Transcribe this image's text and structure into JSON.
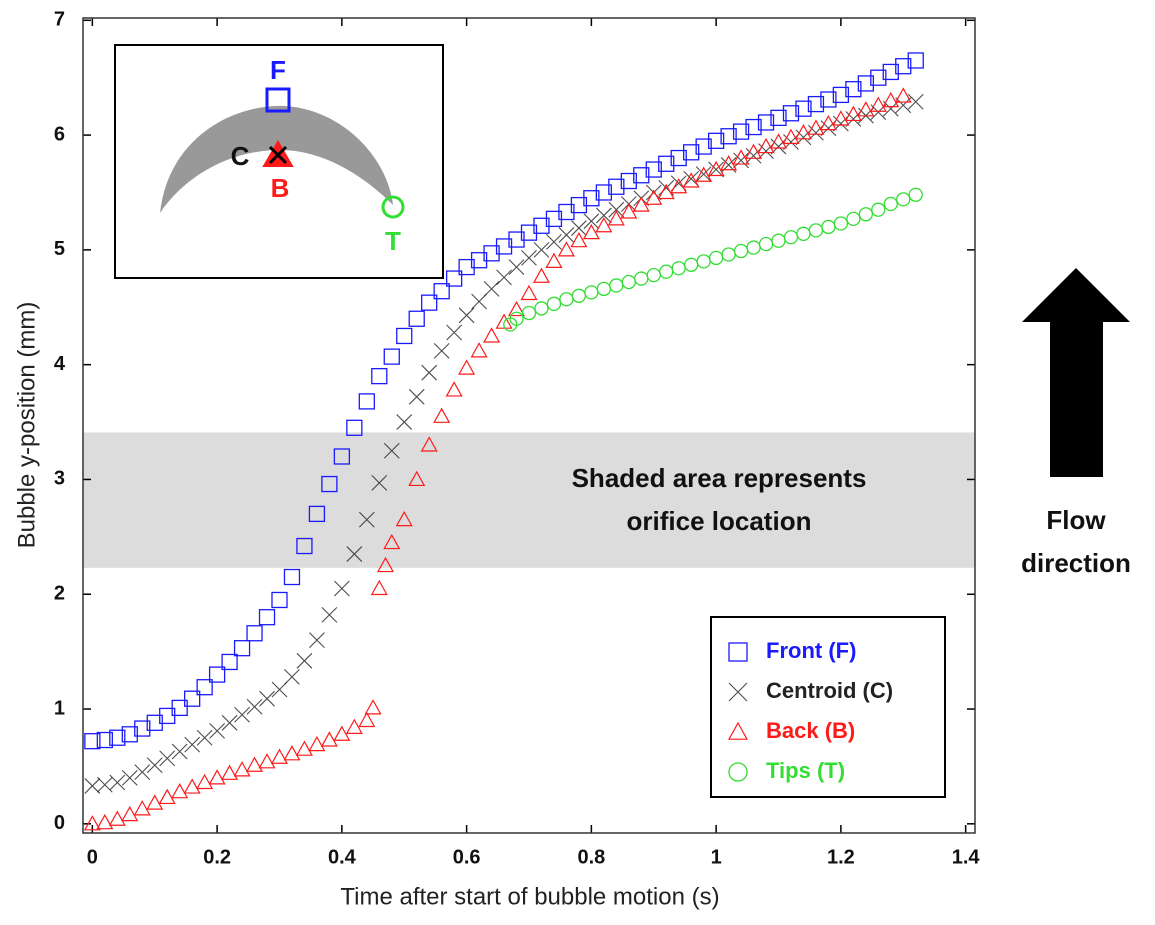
{
  "chart_data": {
    "type": "scatter",
    "x_label": "Time after start of bubble motion (s)",
    "y_label": "Bubble y-position (mm)",
    "xlim": [
      -0.015,
      1.415
    ],
    "ylim": [
      -0.08,
      7.02
    ],
    "xticks": [
      0,
      0.2,
      0.4,
      0.6,
      0.8,
      1,
      1.2,
      1.4
    ],
    "yticks": [
      0,
      1,
      2,
      3,
      4,
      5,
      6,
      7
    ],
    "shaded_band": [
      2.23,
      3.41
    ],
    "annotation": [
      "Shaded area represents",
      "orifice location"
    ],
    "side_note": [
      "Flow",
      "direction"
    ],
    "legend_position": "lower right",
    "inset_labels": {
      "front": "F",
      "centroid": "C",
      "back": "B",
      "tips": "T"
    },
    "series": [
      {
        "name": "Front (F)",
        "marker": "square",
        "color": "#1a1aff",
        "x": [
          0,
          0.02,
          0.04,
          0.06,
          0.08,
          0.1,
          0.12,
          0.14,
          0.16,
          0.18,
          0.2,
          0.22,
          0.24,
          0.26,
          0.28,
          0.3,
          0.32,
          0.34,
          0.36,
          0.38,
          0.4,
          0.42,
          0.44,
          0.46,
          0.48,
          0.5,
          0.52,
          0.54,
          0.56,
          0.58,
          0.6,
          0.62,
          0.64,
          0.66,
          0.68,
          0.7,
          0.72,
          0.74,
          0.76,
          0.78,
          0.8,
          0.82,
          0.84,
          0.86,
          0.88,
          0.9,
          0.92,
          0.94,
          0.96,
          0.98,
          1,
          1.02,
          1.04,
          1.06,
          1.08,
          1.1,
          1.12,
          1.14,
          1.16,
          1.18,
          1.2,
          1.22,
          1.24,
          1.26,
          1.28,
          1.3,
          1.32
        ],
        "values": [
          0.72,
          0.73,
          0.75,
          0.78,
          0.83,
          0.88,
          0.94,
          1.01,
          1.09,
          1.19,
          1.3,
          1.41,
          1.53,
          1.66,
          1.8,
          1.95,
          2.15,
          2.42,
          2.7,
          2.96,
          3.2,
          3.45,
          3.68,
          3.9,
          4.07,
          4.25,
          4.4,
          4.54,
          4.64,
          4.75,
          4.85,
          4.91,
          4.97,
          5.03,
          5.09,
          5.15,
          5.21,
          5.27,
          5.33,
          5.39,
          5.45,
          5.5,
          5.55,
          5.6,
          5.65,
          5.7,
          5.75,
          5.8,
          5.85,
          5.9,
          5.95,
          5.99,
          6.03,
          6.07,
          6.11,
          6.15,
          6.19,
          6.23,
          6.27,
          6.31,
          6.35,
          6.4,
          6.45,
          6.5,
          6.55,
          6.6,
          6.65
        ]
      },
      {
        "name": "Centroid (C)",
        "marker": "cross",
        "color": "#222222",
        "x": [
          0,
          0.02,
          0.04,
          0.06,
          0.08,
          0.1,
          0.12,
          0.14,
          0.16,
          0.18,
          0.2,
          0.22,
          0.24,
          0.26,
          0.28,
          0.3,
          0.32,
          0.34,
          0.36,
          0.38,
          0.4,
          0.42,
          0.44,
          0.46,
          0.48,
          0.5,
          0.52,
          0.54,
          0.56,
          0.58,
          0.6,
          0.62,
          0.64,
          0.66,
          0.68,
          0.7,
          0.72,
          0.74,
          0.76,
          0.78,
          0.8,
          0.82,
          0.84,
          0.86,
          0.88,
          0.9,
          0.92,
          0.94,
          0.96,
          0.98,
          1,
          1.02,
          1.04,
          1.06,
          1.08,
          1.1,
          1.12,
          1.14,
          1.16,
          1.18,
          1.2,
          1.22,
          1.24,
          1.26,
          1.28,
          1.3,
          1.32
        ],
        "values": [
          0.33,
          0.34,
          0.36,
          0.4,
          0.45,
          0.51,
          0.57,
          0.63,
          0.69,
          0.75,
          0.81,
          0.88,
          0.95,
          1.02,
          1.09,
          1.17,
          1.28,
          1.42,
          1.6,
          1.82,
          2.05,
          2.35,
          2.65,
          2.97,
          3.25,
          3.5,
          3.72,
          3.93,
          4.12,
          4.28,
          4.43,
          4.55,
          4.66,
          4.76,
          4.85,
          4.93,
          5,
          5.07,
          5.13,
          5.19,
          5.25,
          5.3,
          5.35,
          5.4,
          5.45,
          5.5,
          5.54,
          5.58,
          5.62,
          5.66,
          5.7,
          5.74,
          5.78,
          5.82,
          5.86,
          5.9,
          5.94,
          5.98,
          6.02,
          6.06,
          6.1,
          6.14,
          6.17,
          6.2,
          6.23,
          6.26,
          6.29
        ]
      },
      {
        "name": "Back (B)",
        "marker": "triangle",
        "color": "#ff1a1a",
        "x": [
          0,
          0.02,
          0.04,
          0.06,
          0.08,
          0.1,
          0.12,
          0.14,
          0.16,
          0.18,
          0.2,
          0.22,
          0.24,
          0.26,
          0.28,
          0.3,
          0.32,
          0.34,
          0.36,
          0.38,
          0.4,
          0.42,
          0.44,
          0.45,
          0.46,
          0.47,
          0.48,
          0.5,
          0.52,
          0.54,
          0.56,
          0.58,
          0.6,
          0.62,
          0.64,
          0.66,
          0.68,
          0.7,
          0.72,
          0.74,
          0.76,
          0.78,
          0.8,
          0.82,
          0.84,
          0.86,
          0.88,
          0.9,
          0.92,
          0.94,
          0.96,
          0.98,
          1,
          1.02,
          1.04,
          1.06,
          1.08,
          1.1,
          1.12,
          1.14,
          1.16,
          1.18,
          1.2,
          1.22,
          1.24,
          1.26,
          1.28,
          1.3
        ],
        "values": [
          0,
          0.01,
          0.04,
          0.08,
          0.13,
          0.18,
          0.23,
          0.28,
          0.32,
          0.36,
          0.4,
          0.44,
          0.47,
          0.51,
          0.54,
          0.58,
          0.61,
          0.65,
          0.69,
          0.73,
          0.78,
          0.84,
          0.9,
          1.01,
          2.05,
          2.25,
          2.45,
          2.65,
          3,
          3.3,
          3.55,
          3.78,
          3.97,
          4.12,
          4.25,
          4.37,
          4.48,
          4.62,
          4.77,
          4.9,
          5,
          5.08,
          5.15,
          5.21,
          5.27,
          5.33,
          5.39,
          5.45,
          5.5,
          5.55,
          5.6,
          5.65,
          5.7,
          5.75,
          5.8,
          5.85,
          5.9,
          5.94,
          5.98,
          6.02,
          6.06,
          6.1,
          6.14,
          6.18,
          6.22,
          6.26,
          6.3,
          6.34
        ]
      },
      {
        "name": "Tips (T)",
        "marker": "circle",
        "color": "#33dd33",
        "x": [
          0.67,
          0.68,
          0.7,
          0.72,
          0.74,
          0.76,
          0.78,
          0.8,
          0.82,
          0.84,
          0.86,
          0.88,
          0.9,
          0.92,
          0.94,
          0.96,
          0.98,
          1,
          1.02,
          1.04,
          1.06,
          1.08,
          1.1,
          1.12,
          1.14,
          1.16,
          1.18,
          1.2,
          1.22,
          1.24,
          1.26,
          1.28,
          1.3,
          1.32
        ],
        "values": [
          4.35,
          4.4,
          4.45,
          4.49,
          4.53,
          4.57,
          4.6,
          4.63,
          4.66,
          4.69,
          4.72,
          4.75,
          4.78,
          4.81,
          4.84,
          4.87,
          4.9,
          4.93,
          4.96,
          4.99,
          5.02,
          5.05,
          5.08,
          5.11,
          5.14,
          5.17,
          5.2,
          5.23,
          5.27,
          5.31,
          5.35,
          5.4,
          5.44,
          5.48
        ]
      }
    ]
  }
}
